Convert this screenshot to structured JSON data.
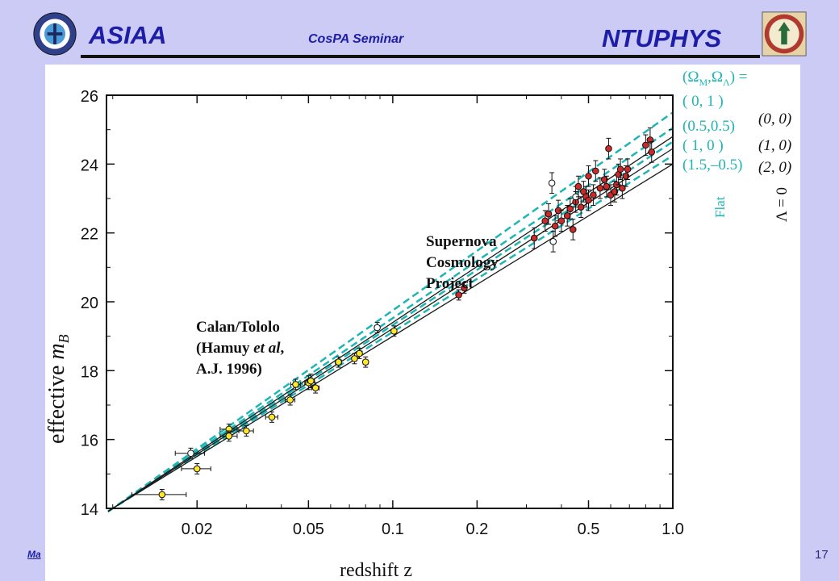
{
  "header": {
    "left_title": "ASIAA",
    "center_title": "CosPA  Seminar",
    "right_title": "NTUPHYS",
    "left_logo_icon": "academia-sinica-seal-icon",
    "right_logo_icon": "ntu-seal-icon"
  },
  "footer": {
    "link_text": "Ma",
    "page_number": "17"
  },
  "chart_data": {
    "type": "scatter",
    "xlabel": "redshift  z",
    "ylabel_text": "effective  ",
    "ylabel_sym": "m",
    "ylabel_sub": "B",
    "x_scale": "log",
    "xlim": [
      0.0095,
      1.0
    ],
    "ylim": [
      14,
      26
    ],
    "x_ticks": [
      0.02,
      0.05,
      0.1,
      0.2,
      0.5,
      1.0
    ],
    "x_tick_labels": [
      "0.02",
      "0.05",
      "0.1",
      "0.2",
      "0.5",
      "1.0"
    ],
    "y_ticks": [
      14,
      16,
      18,
      20,
      22,
      24,
      26
    ],
    "y_tick_labels": [
      "14",
      "16",
      "18",
      "20",
      "22",
      "24",
      "26"
    ],
    "annotations": {
      "scp": [
        "Supernova",
        "Cosmology",
        "Project"
      ],
      "calan": [
        "Calan/Tololo",
        "(Hamuy ",
        "et al",
        ",",
        "A.J. 1996)"
      ]
    },
    "legend": {
      "header": "(Ω",
      "header_sub1": "M",
      "header_mid": ",Ω",
      "header_sub2": "Λ",
      "header_end": ") =",
      "dashed_entries": [
        "( 0,   1 )",
        "(0.5,0.5)",
        "( 1,    0 )",
        "(1.5,–0.5)"
      ],
      "solid_entries": [
        "(0, 0)",
        "(1, 0)",
        "(2, 0)"
      ],
      "flat_label": "Flat",
      "lambda_label": "Λ = 0"
    },
    "colors": {
      "dashed_models": "#1fb5b5",
      "solid_models": "#1a1a1a",
      "calan_tololo": "#ffe82a",
      "scp": "#cc2a2a",
      "open_points": "#ffffff",
      "legend_text": "#1fb5b5"
    },
    "series": [
      {
        "name": "Flat",
        "style": "dashed",
        "anchor_z": 0.01,
        "anchor_m": 14.0,
        "end_m": [
          25.5,
          25.05,
          24.65,
          24.25
        ]
      },
      {
        "name": "Λ = 0",
        "style": "solid",
        "anchor_z": 0.01,
        "anchor_m": 14.0,
        "end_m": [
          24.8,
          24.45,
          24.0
        ]
      },
      {
        "name": "Calan/Tololo",
        "points": [
          {
            "z": 0.015,
            "m": 14.4,
            "xerr": 0.22,
            "yerr": 0.15
          },
          {
            "z": 0.019,
            "m": 15.6,
            "xerr": 0.12,
            "yerr": 0.15,
            "open": true
          },
          {
            "z": 0.02,
            "m": 15.15,
            "xerr": 0.12,
            "yerr": 0.15
          },
          {
            "z": 0.026,
            "m": 16.3,
            "xerr": 0.07,
            "yerr": 0.15
          },
          {
            "z": 0.026,
            "m": 16.1,
            "xerr": 0.07,
            "yerr": 0.15
          },
          {
            "z": 0.03,
            "m": 16.25,
            "xerr": 0.06,
            "yerr": 0.15
          },
          {
            "z": 0.037,
            "m": 16.65,
            "xerr": 0.05,
            "yerr": 0.15
          },
          {
            "z": 0.043,
            "m": 17.15,
            "xerr": 0.04,
            "yerr": 0.15
          },
          {
            "z": 0.045,
            "m": 17.6,
            "xerr": 0.04,
            "yerr": 0.15
          },
          {
            "z": 0.05,
            "m": 17.65,
            "xerr": 0.03,
            "yerr": 0.2
          },
          {
            "z": 0.051,
            "m": 17.7,
            "xerr": 0.03,
            "yerr": 0.2
          },
          {
            "z": 0.053,
            "m": 17.5,
            "xerr": 0.03,
            "yerr": 0.15
          },
          {
            "z": 0.064,
            "m": 18.25,
            "xerr": 0.025,
            "yerr": 0.15
          },
          {
            "z": 0.073,
            "m": 18.35,
            "xerr": 0.02,
            "yerr": 0.15
          },
          {
            "z": 0.076,
            "m": 18.5,
            "xerr": 0.02,
            "yerr": 0.15
          },
          {
            "z": 0.08,
            "m": 18.25,
            "xerr": 0.02,
            "yerr": 0.15
          },
          {
            "z": 0.088,
            "m": 19.25,
            "xerr": 0.02,
            "yerr": 0.15,
            "open": true
          },
          {
            "z": 0.101,
            "m": 19.15,
            "xerr": 0.015,
            "yerr": 0.15
          }
        ]
      },
      {
        "name": "Supernova Cosmology Project",
        "points": [
          {
            "z": 0.172,
            "m": 20.2,
            "yerr": 0.15
          },
          {
            "z": 0.18,
            "m": 20.4,
            "yerr": 0.15
          },
          {
            "z": 0.32,
            "m": 21.85,
            "yerr": 0.3
          },
          {
            "z": 0.35,
            "m": 22.35,
            "yerr": 0.3
          },
          {
            "z": 0.36,
            "m": 22.55,
            "yerr": 0.3
          },
          {
            "z": 0.37,
            "m": 23.45,
            "yerr": 0.3,
            "open": true
          },
          {
            "z": 0.374,
            "m": 21.75,
            "yerr": 0.3,
            "open": true
          },
          {
            "z": 0.38,
            "m": 22.2,
            "yerr": 0.3
          },
          {
            "z": 0.39,
            "m": 22.65,
            "yerr": 0.3
          },
          {
            "z": 0.4,
            "m": 22.35,
            "yerr": 0.3
          },
          {
            "z": 0.42,
            "m": 22.5,
            "yerr": 0.3
          },
          {
            "z": 0.43,
            "m": 22.7,
            "yerr": 0.3
          },
          {
            "z": 0.44,
            "m": 22.1,
            "yerr": 0.3
          },
          {
            "z": 0.45,
            "m": 22.9,
            "yerr": 0.3
          },
          {
            "z": 0.45,
            "m": 23.05,
            "yerr": 0.3,
            "open": true
          },
          {
            "z": 0.46,
            "m": 23.35,
            "yerr": 0.3
          },
          {
            "z": 0.47,
            "m": 22.75,
            "yerr": 0.3
          },
          {
            "z": 0.48,
            "m": 23.2,
            "yerr": 0.3
          },
          {
            "z": 0.49,
            "m": 23.05,
            "yerr": 0.3
          },
          {
            "z": 0.5,
            "m": 22.95,
            "yerr": 0.3
          },
          {
            "z": 0.5,
            "m": 23.65,
            "yerr": 0.3
          },
          {
            "z": 0.52,
            "m": 23.1,
            "yerr": 0.3
          },
          {
            "z": 0.53,
            "m": 23.8,
            "yerr": 0.3
          },
          {
            "z": 0.55,
            "m": 23.3,
            "yerr": 0.3
          },
          {
            "z": 0.57,
            "m": 23.55,
            "yerr": 0.3
          },
          {
            "z": 0.58,
            "m": 23.35,
            "yerr": 0.3
          },
          {
            "z": 0.59,
            "m": 24.45,
            "yerr": 0.3
          },
          {
            "z": 0.6,
            "m": 23.1,
            "yerr": 0.3
          },
          {
            "z": 0.62,
            "m": 23.2,
            "yerr": 0.3
          },
          {
            "z": 0.63,
            "m": 23.4,
            "yerr": 0.3
          },
          {
            "z": 0.64,
            "m": 23.7,
            "yerr": 0.3
          },
          {
            "z": 0.65,
            "m": 23.85,
            "yerr": 0.3
          },
          {
            "z": 0.66,
            "m": 23.3,
            "yerr": 0.3
          },
          {
            "z": 0.68,
            "m": 23.65,
            "yerr": 0.3
          },
          {
            "z": 0.69,
            "m": 23.85,
            "yerr": 0.3
          },
          {
            "z": 0.8,
            "m": 24.55,
            "yerr": 0.3
          },
          {
            "z": 0.83,
            "m": 24.7,
            "yerr": 0.35
          },
          {
            "z": 0.84,
            "m": 24.35,
            "yerr": 0.3
          }
        ]
      }
    ]
  }
}
